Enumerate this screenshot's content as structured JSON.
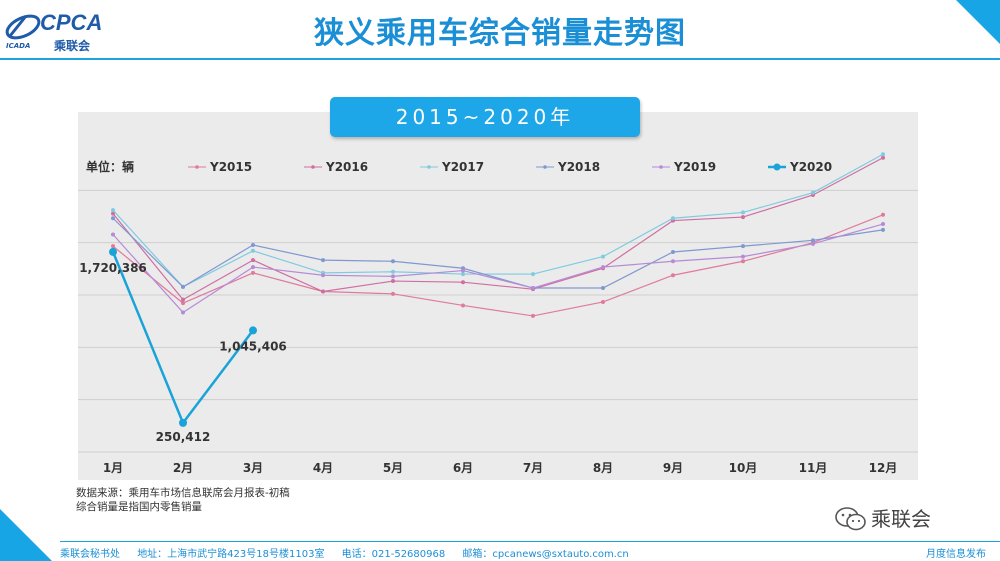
{
  "header": {
    "title": "狭义乘用车综合销量走势图",
    "logo_text": "CPCA",
    "logo_cn": "乘联会",
    "logo_small": "ICADA"
  },
  "badge": "2015~2020年",
  "colors": {
    "accent": "#1aa3e0",
    "plot_bg": "#ebebeb",
    "Y2015": "#e07a9c",
    "Y2016": "#cf6ea0",
    "Y2017": "#7fcbe0",
    "Y2018": "#7f98d0",
    "Y2019": "#b58ad6",
    "Y2020": "#1aa3d8"
  },
  "chart_data": {
    "type": "line",
    "title": "",
    "unit_label": "单位：辆",
    "categories": [
      "1月",
      "2月",
      "3月",
      "4月",
      "5月",
      "6月",
      "7月",
      "8月",
      "9月",
      "10月",
      "11月",
      "12月"
    ],
    "ylim": [
      0,
      2700000
    ],
    "grid": true,
    "legend": "top",
    "series": [
      {
        "name": "Y2015",
        "values": [
          1770000,
          1280000,
          1540000,
          1380000,
          1360000,
          1260000,
          1170000,
          1290000,
          1520000,
          1640000,
          1800000,
          2040000
        ]
      },
      {
        "name": "Y2016",
        "values": [
          2050000,
          1310000,
          1650000,
          1380000,
          1470000,
          1460000,
          1400000,
          1580000,
          1990000,
          2020000,
          2210000,
          2530000
        ]
      },
      {
        "name": "Y2017",
        "values": [
          2080000,
          1420000,
          1730000,
          1540000,
          1550000,
          1530000,
          1530000,
          1680000,
          2010000,
          2060000,
          2230000,
          2560000
        ]
      },
      {
        "name": "Y2018",
        "values": [
          2010000,
          1420000,
          1780000,
          1650000,
          1640000,
          1580000,
          1410000,
          1410000,
          1720000,
          1770000,
          1820000,
          1910000
        ]
      },
      {
        "name": "Y2019",
        "values": [
          1870000,
          1200000,
          1590000,
          1520000,
          1510000,
          1560000,
          1410000,
          1590000,
          1640000,
          1680000,
          1790000,
          1960000
        ]
      },
      {
        "name": "Y2020",
        "values": [
          1720386,
          250412,
          1045406,
          null,
          null,
          null,
          null,
          null,
          null,
          null,
          null,
          null
        ]
      }
    ],
    "data_labels": [
      {
        "series": "Y2020",
        "category": "1月",
        "text": "1,720,386"
      },
      {
        "series": "Y2020",
        "category": "2月",
        "text": "250,412"
      },
      {
        "series": "Y2020",
        "category": "3月",
        "text": "1,045,406"
      }
    ]
  },
  "source_notes": [
    "数据来源：乘用车市场信息联席会月报表-初稿",
    "综合销量是指国内零售销量"
  ],
  "wechat_label": "乘联会",
  "footer": {
    "org": "乘联会秘书处",
    "address": "地址：上海市武宁路423号18号楼1103室",
    "phone": "电话：021-52680968",
    "email": "邮箱：cpcanews@sxtauto.com.cn",
    "right": "月度信息发布"
  }
}
